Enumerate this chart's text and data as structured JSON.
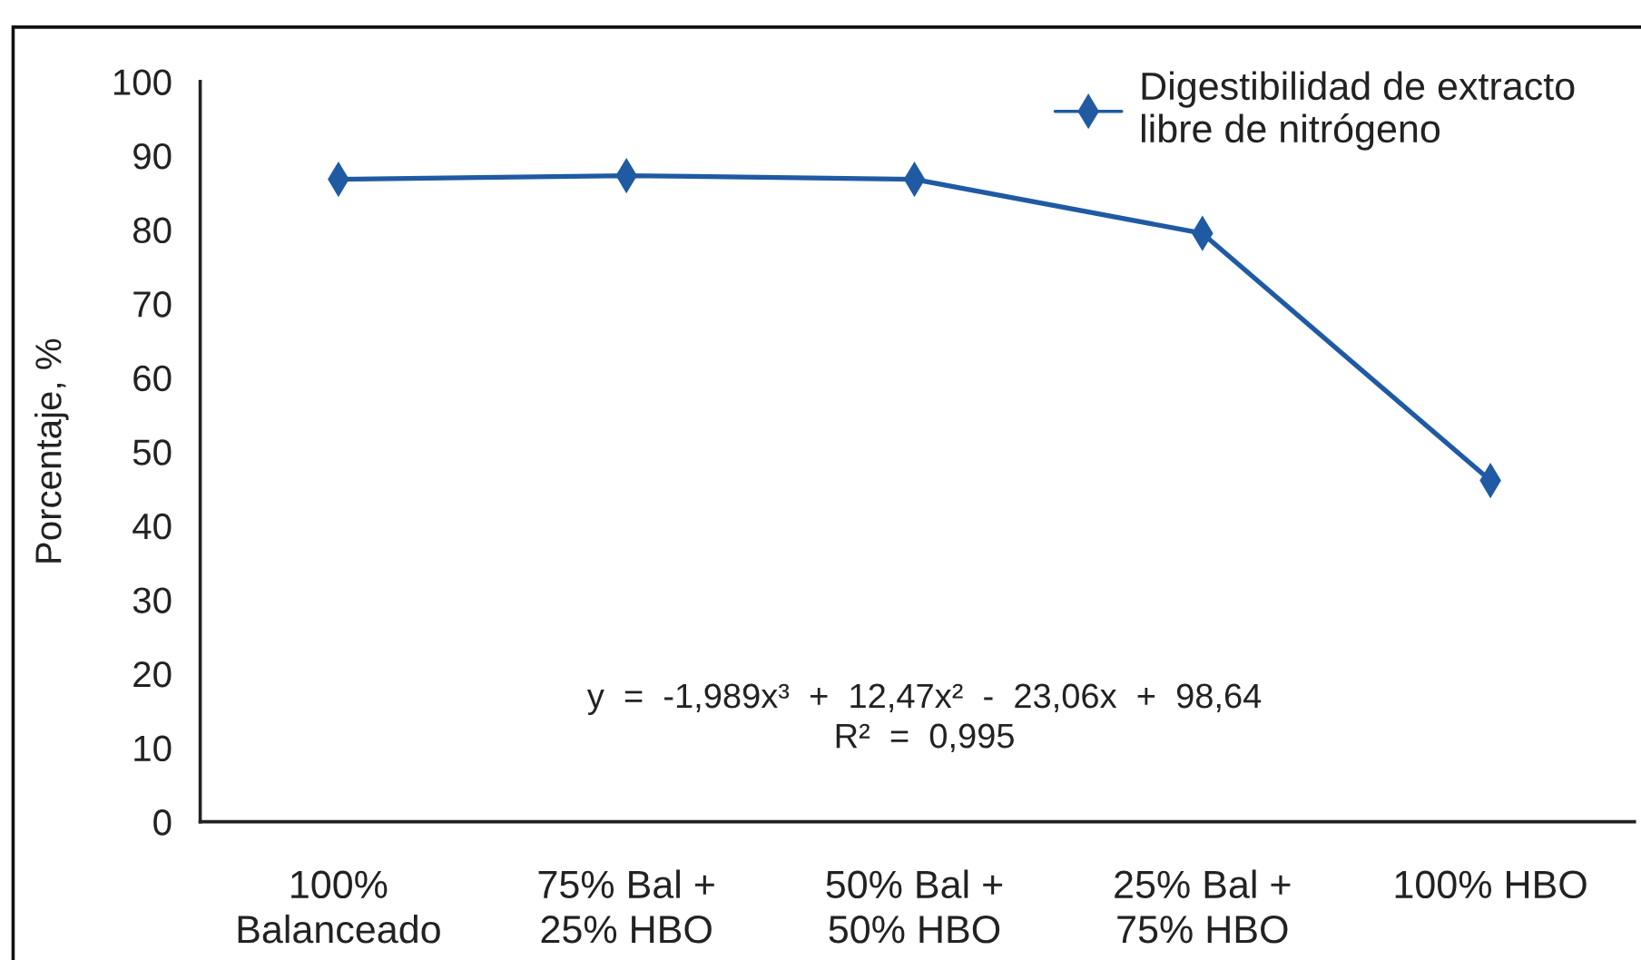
{
  "chart_data": {
    "type": "line",
    "ylabel": "Porcentaje, %",
    "categories": [
      "100%\nBalanceado",
      "75% Bal +\n25% HBO",
      "50% Bal +\n50% HBO",
      "25% Bal +\n75% HBO",
      "100% HBO"
    ],
    "series": [
      {
        "name": "Digestibilidad de extracto\nlibre de nitrógeno",
        "color": "#1f5aa3",
        "values": [
          86.8,
          87.3,
          86.8,
          79.5,
          46.1
        ]
      }
    ],
    "ylim": [
      0,
      100
    ],
    "yticks": [
      0,
      10,
      20,
      30,
      40,
      50,
      60,
      70,
      80,
      90,
      100
    ],
    "annotations": [
      "y  =  -1,989x³  +  12,47x²  -  23,06x  +  98,64",
      "R²  =  0,995"
    ],
    "legend": "top right",
    "marker": "diamond",
    "line_style": "solid"
  }
}
